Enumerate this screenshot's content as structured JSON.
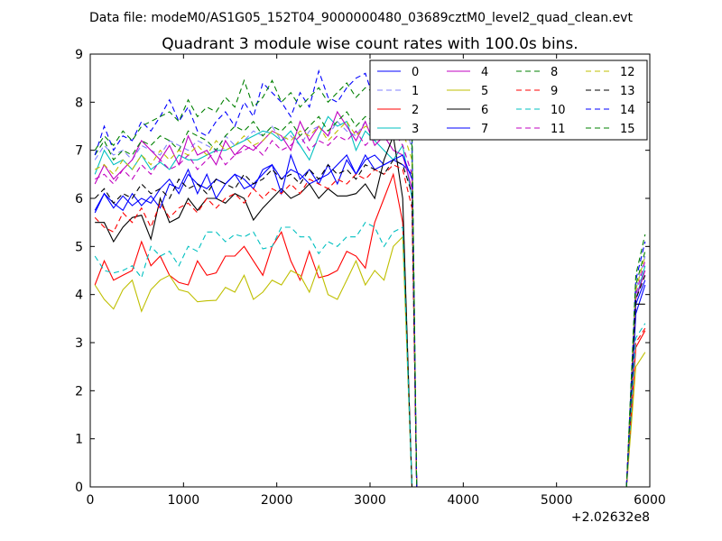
{
  "header": {
    "suptitle": "Data file: modeM0/AS1G05_152T04_9000000480_03689cztM0_level2_quad_clean.evt"
  },
  "chart_data": {
    "type": "line",
    "title": "Quadrant 3 module wise count rates with 100.0s bins.",
    "xlabel": "",
    "ylabel": "",
    "x_offset_label": "+2.02632e8",
    "xlim": [
      0,
      6000
    ],
    "ylim": [
      0,
      9
    ],
    "x_ticks": [
      0,
      1000,
      2000,
      3000,
      4000,
      5000,
      6000
    ],
    "y_ticks": [
      0,
      1,
      2,
      3,
      4,
      5,
      6,
      7,
      8,
      9
    ],
    "grid": false,
    "legend_position": "top-right",
    "x": [
      50,
      150,
      250,
      350,
      450,
      550,
      650,
      750,
      850,
      950,
      1050,
      1150,
      1250,
      1350,
      1450,
      1550,
      1650,
      1750,
      1850,
      1950,
      2050,
      2150,
      2250,
      2350,
      2450,
      2550,
      2650,
      2750,
      2850,
      2950,
      3050,
      3150,
      3250,
      3350,
      3450,
      3500,
      5750,
      5850,
      5950
    ],
    "series": [
      {
        "name": "0",
        "color": "#0000ff",
        "dash": "solid",
        "values": [
          5.75,
          6.1,
          5.8,
          6.05,
          5.85,
          6.0,
          5.9,
          6.2,
          6.4,
          6.1,
          6.5,
          6.3,
          6.2,
          6.4,
          6.3,
          6.5,
          6.4,
          6.2,
          6.6,
          6.7,
          6.4,
          6.6,
          6.5,
          6.3,
          6.4,
          6.5,
          6.7,
          6.9,
          6.5,
          6.8,
          6.9,
          6.7,
          6.8,
          6.7,
          6.5,
          0,
          0,
          3.6,
          4.2
        ]
      },
      {
        "name": "1",
        "color": "#8080ff",
        "dash": "6,4",
        "values": [
          6.8,
          7.1,
          6.9,
          7.0,
          6.8,
          7.1,
          7.0,
          6.9,
          7.2,
          7.1,
          7.0,
          7.2,
          7.1,
          7.0,
          7.3,
          7.1,
          7.2,
          7.4,
          7.3,
          7.5,
          7.2,
          7.3,
          7.1,
          7.4,
          7.5,
          7.3,
          7.6,
          7.4,
          7.3,
          7.6,
          7.5,
          7.7,
          7.6,
          7.8,
          7.0,
          0,
          0,
          4.1,
          4.8
        ]
      },
      {
        "name": "2",
        "color": "#ff0000",
        "dash": "solid",
        "values": [
          4.2,
          4.7,
          4.3,
          4.4,
          4.5,
          5.1,
          4.6,
          4.8,
          4.4,
          4.25,
          4.2,
          4.7,
          4.4,
          4.45,
          4.8,
          4.8,
          5.0,
          4.7,
          4.4,
          5.0,
          5.3,
          4.7,
          4.3,
          4.9,
          4.35,
          4.4,
          4.5,
          4.9,
          4.8,
          4.55,
          5.5,
          6.0,
          6.5,
          5.5,
          0,
          0,
          0,
          2.9,
          3.25
        ]
      },
      {
        "name": "3",
        "color": "#00c0c0",
        "dash": "solid",
        "values": [
          6.5,
          7.0,
          6.7,
          6.8,
          6.6,
          6.9,
          6.6,
          6.75,
          6.6,
          6.9,
          6.8,
          6.8,
          6.9,
          7.0,
          7.0,
          7.1,
          7.2,
          7.3,
          7.4,
          7.35,
          7.2,
          7.4,
          7.1,
          6.8,
          7.3,
          7.7,
          7.5,
          7.6,
          7.0,
          7.4,
          7.2,
          7.0,
          6.8,
          7.1,
          6.0,
          0,
          0,
          3.9,
          4.6
        ]
      },
      {
        "name": "4",
        "color": "#c000c0",
        "dash": "solid",
        "values": [
          6.3,
          6.7,
          6.4,
          6.6,
          6.8,
          7.2,
          7.0,
          6.8,
          7.1,
          6.7,
          7.3,
          6.9,
          7.0,
          6.7,
          7.2,
          6.9,
          7.1,
          7.0,
          7.2,
          7.4,
          7.3,
          7.0,
          7.6,
          7.2,
          7.5,
          7.3,
          7.8,
          7.5,
          7.2,
          7.6,
          7.1,
          7.3,
          7.0,
          6.9,
          6.2,
          0,
          0,
          3.9,
          4.5
        ]
      },
      {
        "name": "5",
        "color": "#bfbf00",
        "dash": "solid",
        "values": [
          4.2,
          3.9,
          3.7,
          4.1,
          4.3,
          3.65,
          4.1,
          4.3,
          4.4,
          4.1,
          4.05,
          3.85,
          3.87,
          3.88,
          4.15,
          4.05,
          4.4,
          3.9,
          4.05,
          4.3,
          4.2,
          4.5,
          4.4,
          4.05,
          4.6,
          4.0,
          3.9,
          4.3,
          4.7,
          4.2,
          4.5,
          4.3,
          5.0,
          5.2,
          0,
          0,
          0,
          2.5,
          2.8
        ]
      },
      {
        "name": "6",
        "color": "#000000",
        "dash": "solid",
        "values": [
          5.5,
          5.5,
          5.1,
          5.4,
          5.6,
          5.65,
          5.15,
          6.0,
          5.5,
          5.6,
          6.0,
          5.75,
          6.0,
          6.0,
          5.9,
          6.1,
          6.0,
          5.55,
          5.8,
          6.0,
          6.2,
          6.0,
          6.1,
          6.3,
          6.0,
          6.2,
          6.05,
          6.05,
          6.1,
          6.3,
          6.0,
          6.8,
          7.3,
          6.0,
          0,
          0,
          0,
          3.8,
          3.8
        ]
      },
      {
        "name": "7",
        "color": "#0000ff",
        "dash": "solid",
        "values": [
          5.7,
          6.1,
          5.9,
          5.75,
          6.1,
          5.85,
          6.05,
          5.8,
          6.3,
          6.2,
          6.6,
          6.1,
          6.5,
          6.0,
          6.3,
          6.5,
          6.2,
          6.3,
          6.5,
          6.7,
          6.1,
          6.9,
          6.4,
          6.6,
          6.3,
          6.7,
          6.3,
          6.8,
          6.5,
          6.9,
          6.6,
          6.7,
          6.8,
          6.9,
          6.4,
          0,
          0,
          3.8,
          4.3
        ]
      },
      {
        "name": "8",
        "color": "#008000",
        "dash": "6,4",
        "values": [
          6.9,
          7.2,
          6.8,
          7.0,
          6.9,
          7.2,
          7.1,
          7.3,
          7.2,
          7.0,
          7.4,
          7.3,
          7.2,
          7.0,
          7.3,
          7.5,
          7.4,
          7.6,
          7.3,
          7.5,
          7.4,
          7.6,
          7.3,
          7.5,
          7.7,
          7.4,
          7.6,
          7.8,
          7.5,
          7.7,
          7.6,
          7.9,
          7.8,
          7.7,
          7.1,
          0,
          0,
          4.2,
          4.9
        ]
      },
      {
        "name": "9",
        "color": "#ff0000",
        "dash": "6,4",
        "values": [
          5.6,
          5.4,
          5.3,
          5.7,
          5.5,
          5.8,
          5.4,
          5.9,
          5.6,
          5.8,
          5.9,
          5.7,
          6.0,
          5.8,
          6.0,
          6.1,
          5.9,
          6.2,
          6.0,
          6.2,
          6.1,
          6.3,
          6.1,
          6.4,
          6.3,
          6.2,
          6.4,
          6.3,
          6.5,
          6.4,
          6.6,
          6.5,
          6.7,
          6.6,
          5.8,
          0,
          0,
          3.0,
          3.3
        ]
      },
      {
        "name": "10",
        "color": "#00c0c0",
        "dash": "6,4",
        "values": [
          4.8,
          4.5,
          4.45,
          4.5,
          4.6,
          4.35,
          5.0,
          4.8,
          4.9,
          4.6,
          5.0,
          4.9,
          5.3,
          5.3,
          5.1,
          5.25,
          5.2,
          5.3,
          4.95,
          5.0,
          5.4,
          5.4,
          5.2,
          5.2,
          4.85,
          5.1,
          5.0,
          5.2,
          5.2,
          5.5,
          5.4,
          5.0,
          5.3,
          5.4,
          0,
          0,
          0,
          3.1,
          3.4
        ]
      },
      {
        "name": "11",
        "color": "#c000c0",
        "dash": "6,4",
        "values": [
          6.4,
          6.5,
          6.3,
          6.6,
          6.4,
          6.7,
          6.5,
          6.8,
          6.6,
          6.7,
          6.9,
          6.6,
          6.8,
          7.0,
          6.7,
          6.9,
          7.0,
          7.1,
          6.9,
          7.2,
          7.0,
          7.1,
          7.3,
          7.0,
          7.2,
          7.1,
          7.3,
          7.2,
          7.4,
          7.1,
          7.3,
          7.2,
          7.4,
          7.1,
          6.5,
          0,
          0,
          4.0,
          4.7
        ]
      },
      {
        "name": "12",
        "color": "#bfbf00",
        "dash": "6,4",
        "values": [
          6.6,
          6.7,
          6.5,
          6.8,
          6.6,
          6.9,
          6.7,
          7.0,
          6.8,
          7.0,
          6.9,
          7.1,
          6.9,
          7.2,
          7.0,
          7.1,
          7.3,
          7.1,
          7.2,
          7.4,
          7.3,
          7.2,
          7.4,
          7.3,
          7.5,
          7.2,
          7.4,
          7.6,
          7.3,
          7.5,
          7.4,
          7.6,
          7.5,
          7.4,
          6.8,
          0,
          0,
          4.1,
          4.8
        ]
      },
      {
        "name": "13",
        "color": "#000000",
        "dash": "6,4",
        "values": [
          6.0,
          6.2,
          5.9,
          6.1,
          6.0,
          6.3,
          6.1,
          6.2,
          6.0,
          6.4,
          6.2,
          6.3,
          6.1,
          6.4,
          6.3,
          6.2,
          6.5,
          6.3,
          6.4,
          6.6,
          6.4,
          6.5,
          6.3,
          6.6,
          6.4,
          6.7,
          6.5,
          6.6,
          6.4,
          6.7,
          6.6,
          6.5,
          6.8,
          6.7,
          6.1,
          0,
          0,
          3.9,
          4.4
        ]
      },
      {
        "name": "14",
        "color": "#0000ff",
        "dash": "6,4",
        "values": [
          6.9,
          7.5,
          7.0,
          7.3,
          7.2,
          7.6,
          7.4,
          7.7,
          8.05,
          7.6,
          7.9,
          7.4,
          7.3,
          7.6,
          7.8,
          7.5,
          8.0,
          7.7,
          8.4,
          8.2,
          8.0,
          7.7,
          8.2,
          7.9,
          8.65,
          8.1,
          8.0,
          8.3,
          8.5,
          8.6,
          8.0,
          8.8,
          8.4,
          8.2,
          7.3,
          0,
          0,
          4.3,
          5.1
        ]
      },
      {
        "name": "15",
        "color": "#008000",
        "dash": "6,4",
        "values": [
          7.0,
          7.3,
          7.1,
          7.4,
          7.2,
          7.5,
          7.6,
          7.7,
          7.8,
          7.6,
          8.05,
          7.7,
          7.9,
          7.8,
          8.1,
          7.9,
          8.45,
          7.9,
          8.1,
          8.45,
          8.0,
          8.2,
          7.9,
          8.1,
          8.3,
          8.0,
          8.2,
          8.4,
          8.1,
          8.3,
          8.2,
          8.4,
          8.0,
          8.3,
          7.4,
          0,
          0,
          4.4,
          5.25
        ]
      }
    ]
  }
}
